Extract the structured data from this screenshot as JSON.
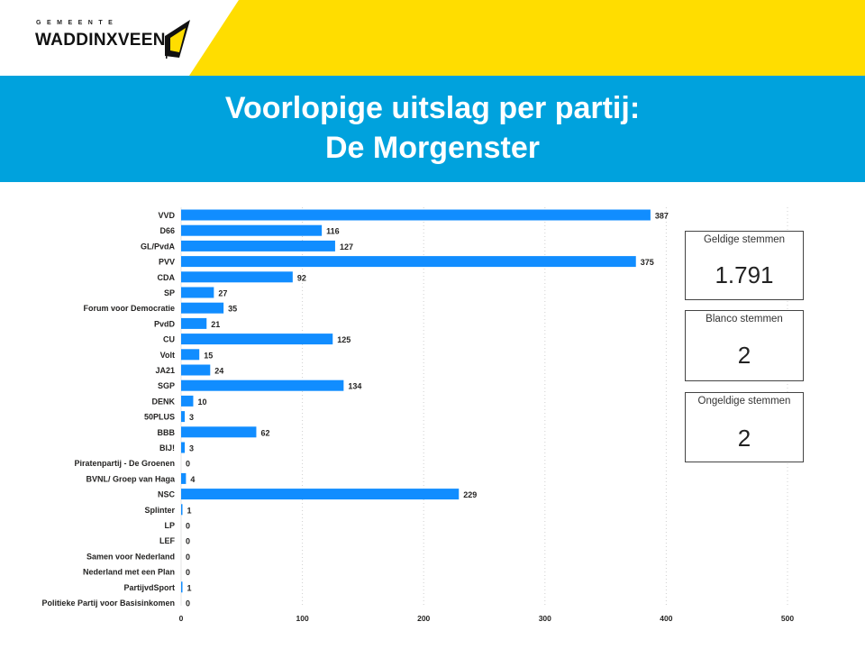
{
  "logo": {
    "small": "GEMEENTE",
    "main": "WADDINXVEEN"
  },
  "colors": {
    "header_yellow": "#ffdd00",
    "title_band": "#00a2dd",
    "bar": "#118dff"
  },
  "title": {
    "line1": "Voorlopige uitslag per partij:",
    "line2": "De Morgenster"
  },
  "cards": {
    "geldig": {
      "label": "Geldige stemmen",
      "value": "1.791"
    },
    "blanco": {
      "label": "Blanco stemmen",
      "value": "2"
    },
    "ongeldig": {
      "label": "Ongeldige stemmen",
      "value": "2"
    }
  },
  "chart_data": {
    "type": "bar",
    "orientation": "horizontal",
    "categories": [
      "VVD",
      "D66",
      "GL/PvdA",
      "PVV",
      "CDA",
      "SP",
      "Forum voor Democratie",
      "PvdD",
      "CU",
      "Volt",
      "JA21",
      "SGP",
      "DENK",
      "50PLUS",
      "BBB",
      "BIJ!",
      "Piratenpartij - De Groenen",
      "BVNL/ Groep van Haga",
      "NSC",
      "Splinter",
      "LP",
      "LEF",
      "Samen voor Nederland",
      "Nederland met een Plan",
      "PartijvdSport",
      "Politieke Partij voor Basisinkomen"
    ],
    "values": [
      387,
      116,
      127,
      375,
      92,
      27,
      35,
      21,
      125,
      15,
      24,
      134,
      10,
      3,
      62,
      3,
      0,
      4,
      229,
      1,
      0,
      0,
      0,
      0,
      1,
      0
    ],
    "xlim": [
      0,
      500
    ],
    "xticks": [
      0,
      100,
      200,
      300,
      400,
      500
    ],
    "grid": true
  }
}
